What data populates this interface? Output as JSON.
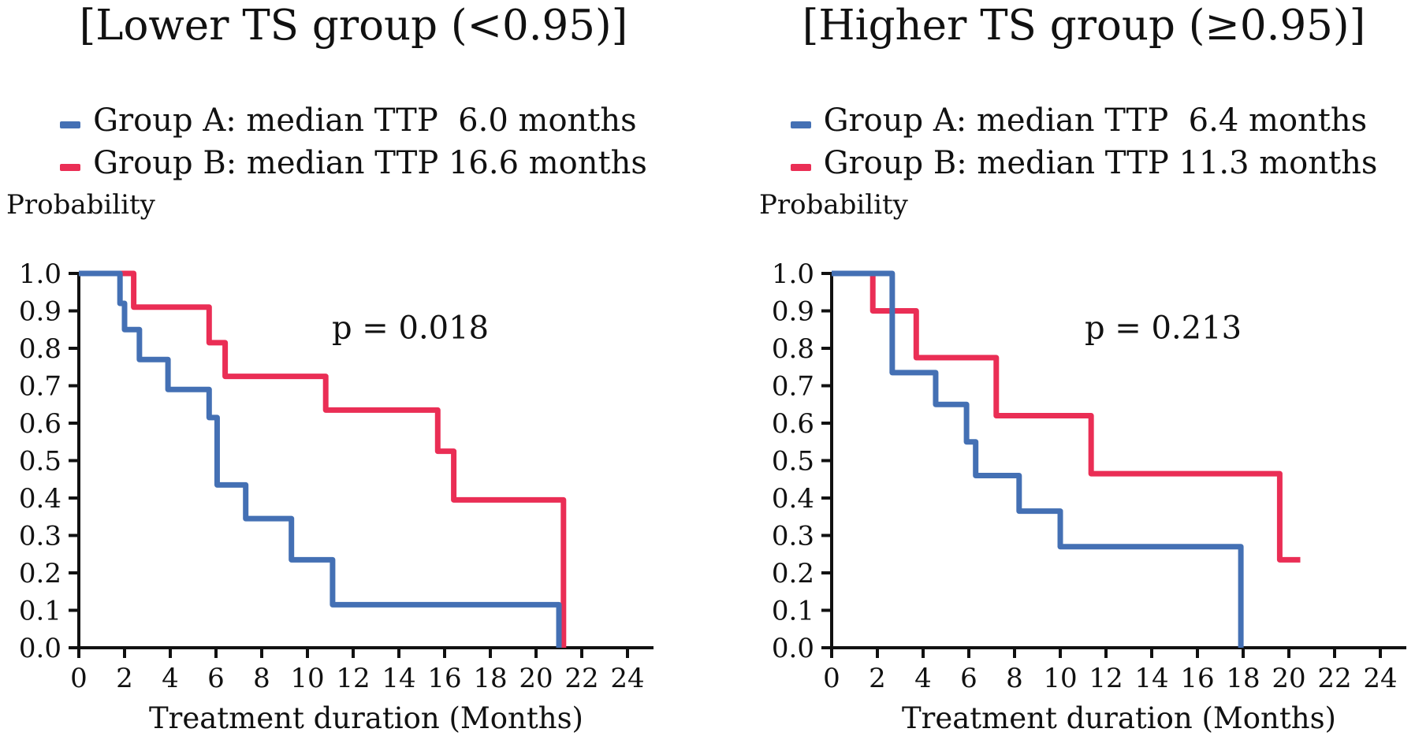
{
  "figure": {
    "probability_label": "Probability",
    "x_axis_label": "Treatment duration (Months)",
    "colors": {
      "group_a": "#4470b4",
      "group_b": "#ea2e55",
      "axis": "#111111"
    }
  },
  "panels": [
    {
      "title": "[Lower TS group (<0.95)]",
      "p_value_label": "p = 0.018",
      "legend": [
        {
          "group": "Group A",
          "label": "Group A: median TTP  6.0 months",
          "median_ttp_months": 6.0
        },
        {
          "group": "Group B",
          "label": "Group B: median TTP 16.6 months",
          "median_ttp_months": 16.6
        }
      ]
    },
    {
      "title": "[Higher TS group (≥0.95)]",
      "p_value_label": "p = 0.213",
      "legend": [
        {
          "group": "Group A",
          "label": "Group A: median TTP  6.4 months",
          "median_ttp_months": 6.4
        },
        {
          "group": "Group B",
          "label": "Group B: median TTP 11.3 months",
          "median_ttp_months": 11.3
        }
      ]
    }
  ],
  "chart_data": [
    {
      "type": "line",
      "step": true,
      "title": "[Lower TS group (<0.95)]",
      "xlabel": "Treatment duration (Months)",
      "ylabel": "Probability",
      "xlim": [
        0,
        25
      ],
      "ylim": [
        0,
        1.0
      ],
      "xticks": [
        0,
        2,
        4,
        6,
        8,
        10,
        12,
        14,
        16,
        18,
        20,
        22,
        24
      ],
      "yticks": [
        0.0,
        0.1,
        0.2,
        0.3,
        0.4,
        0.5,
        0.6,
        0.7,
        0.8,
        0.9,
        1.0
      ],
      "grid": false,
      "legend_position": "above",
      "annotation": {
        "text": "p = 0.018",
        "x": 14.5,
        "y": 0.86
      },
      "series": [
        {
          "name": "Group A: median TTP 6.0 months",
          "color_key": "group_a",
          "median_ttp_months": 6.0,
          "points": [
            [
              0,
              1.0
            ],
            [
              1.8,
              1.0
            ],
            [
              1.8,
              0.92
            ],
            [
              2.0,
              0.92
            ],
            [
              2.0,
              0.85
            ],
            [
              2.65,
              0.85
            ],
            [
              2.65,
              0.77
            ],
            [
              3.9,
              0.77
            ],
            [
              3.9,
              0.69
            ],
            [
              5.7,
              0.69
            ],
            [
              5.7,
              0.615
            ],
            [
              6.05,
              0.615
            ],
            [
              6.05,
              0.435
            ],
            [
              7.3,
              0.435
            ],
            [
              7.3,
              0.345
            ],
            [
              9.3,
              0.345
            ],
            [
              9.3,
              0.235
            ],
            [
              11.1,
              0.235
            ],
            [
              11.1,
              0.115
            ],
            [
              21.0,
              0.115
            ],
            [
              21.0,
              0
            ]
          ]
        },
        {
          "name": "Group B: median TTP 16.6 months",
          "color_key": "group_b",
          "median_ttp_months": 16.6,
          "points": [
            [
              0,
              1.0
            ],
            [
              2.4,
              1.0
            ],
            [
              2.4,
              0.91
            ],
            [
              5.7,
              0.91
            ],
            [
              5.7,
              0.815
            ],
            [
              6.4,
              0.815
            ],
            [
              6.4,
              0.725
            ],
            [
              10.8,
              0.725
            ],
            [
              10.8,
              0.635
            ],
            [
              15.7,
              0.635
            ],
            [
              15.7,
              0.525
            ],
            [
              16.4,
              0.525
            ],
            [
              16.4,
              0.395
            ],
            [
              21.2,
              0.395
            ],
            [
              21.2,
              0
            ]
          ]
        }
      ]
    },
    {
      "type": "line",
      "step": true,
      "title": "[Higher TS group (≥0.95)]",
      "xlabel": "Treatment duration (Months)",
      "ylabel": "Probability",
      "xlim": [
        0,
        25
      ],
      "ylim": [
        0,
        1.0
      ],
      "xticks": [
        0,
        2,
        4,
        6,
        8,
        10,
        12,
        14,
        16,
        18,
        20,
        22,
        24
      ],
      "yticks": [
        0.0,
        0.1,
        0.2,
        0.3,
        0.4,
        0.5,
        0.6,
        0.7,
        0.8,
        0.9,
        1.0
      ],
      "grid": false,
      "legend_position": "above",
      "annotation": {
        "text": "p = 0.213",
        "x": 14.5,
        "y": 0.86
      },
      "series": [
        {
          "name": "Group A: median TTP 6.4 months",
          "color_key": "group_a",
          "median_ttp_months": 6.4,
          "points": [
            [
              0,
              1.0
            ],
            [
              2.65,
              1.0
            ],
            [
              2.65,
              0.735
            ],
            [
              4.55,
              0.735
            ],
            [
              4.55,
              0.65
            ],
            [
              5.9,
              0.65
            ],
            [
              5.9,
              0.55
            ],
            [
              6.3,
              0.55
            ],
            [
              6.3,
              0.46
            ],
            [
              8.2,
              0.46
            ],
            [
              8.2,
              0.365
            ],
            [
              10.0,
              0.365
            ],
            [
              10.0,
              0.27
            ],
            [
              17.9,
              0.27
            ],
            [
              17.9,
              0
            ]
          ]
        },
        {
          "name": "Group B: median TTP 11.3 months",
          "color_key": "group_b",
          "median_ttp_months": 11.3,
          "points": [
            [
              0,
              1.0
            ],
            [
              1.8,
              1.0
            ],
            [
              1.8,
              0.9
            ],
            [
              3.7,
              0.9
            ],
            [
              3.7,
              0.775
            ],
            [
              7.2,
              0.775
            ],
            [
              7.2,
              0.62
            ],
            [
              11.35,
              0.62
            ],
            [
              11.35,
              0.465
            ],
            [
              19.6,
              0.465
            ],
            [
              19.6,
              0.235
            ],
            [
              20.5,
              0.235
            ]
          ]
        }
      ]
    }
  ]
}
